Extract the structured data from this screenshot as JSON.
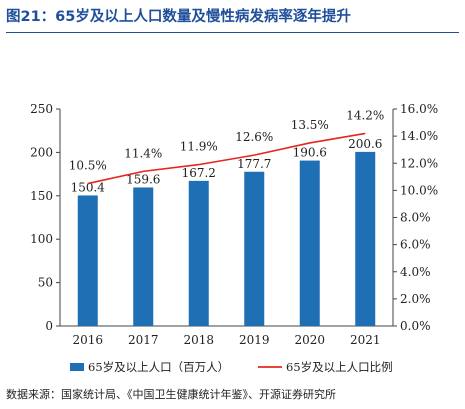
{
  "figure": {
    "title": "图21：65岁及以上人口数量及慢性病发病率逐年提升",
    "source": "数据来源：国家统计局、《中国卫生健康统计年鉴》、开源证券研究所"
  },
  "chart_data": {
    "type": "bar",
    "title": "",
    "xlabel": "",
    "ylabel": "",
    "categories": [
      "2016",
      "2017",
      "2018",
      "2019",
      "2020",
      "2021"
    ],
    "ylim": [
      0,
      250
    ],
    "y_ticks": [
      "0",
      "50",
      "100",
      "150",
      "200",
      "250"
    ],
    "y2lim": [
      0,
      0.16
    ],
    "y2_ticks": [
      "0.0%",
      "2.0%",
      "4.0%",
      "6.0%",
      "8.0%",
      "10.0%",
      "12.0%",
      "14.0%",
      "16.0%"
    ],
    "grid": false,
    "legend_position": "bottom",
    "series": [
      {
        "name": "65岁及以上人口（百万人）",
        "type": "bar",
        "axis": "left",
        "color": "#1f6fb5",
        "values": [
          150.4,
          159.6,
          167.2,
          177.7,
          190.6,
          200.6
        ],
        "labels": [
          "150.4",
          "159.6",
          "167.2",
          "177.7",
          "190.6",
          "200.6"
        ]
      },
      {
        "name": "65岁及以上人口比例",
        "type": "line",
        "axis": "right",
        "color": "#e8241f",
        "values": [
          0.105,
          0.114,
          0.119,
          0.126,
          0.135,
          0.142
        ],
        "labels": [
          "10.5%",
          "11.4%",
          "11.9%",
          "12.6%",
          "13.5%",
          "14.2%"
        ]
      }
    ]
  }
}
